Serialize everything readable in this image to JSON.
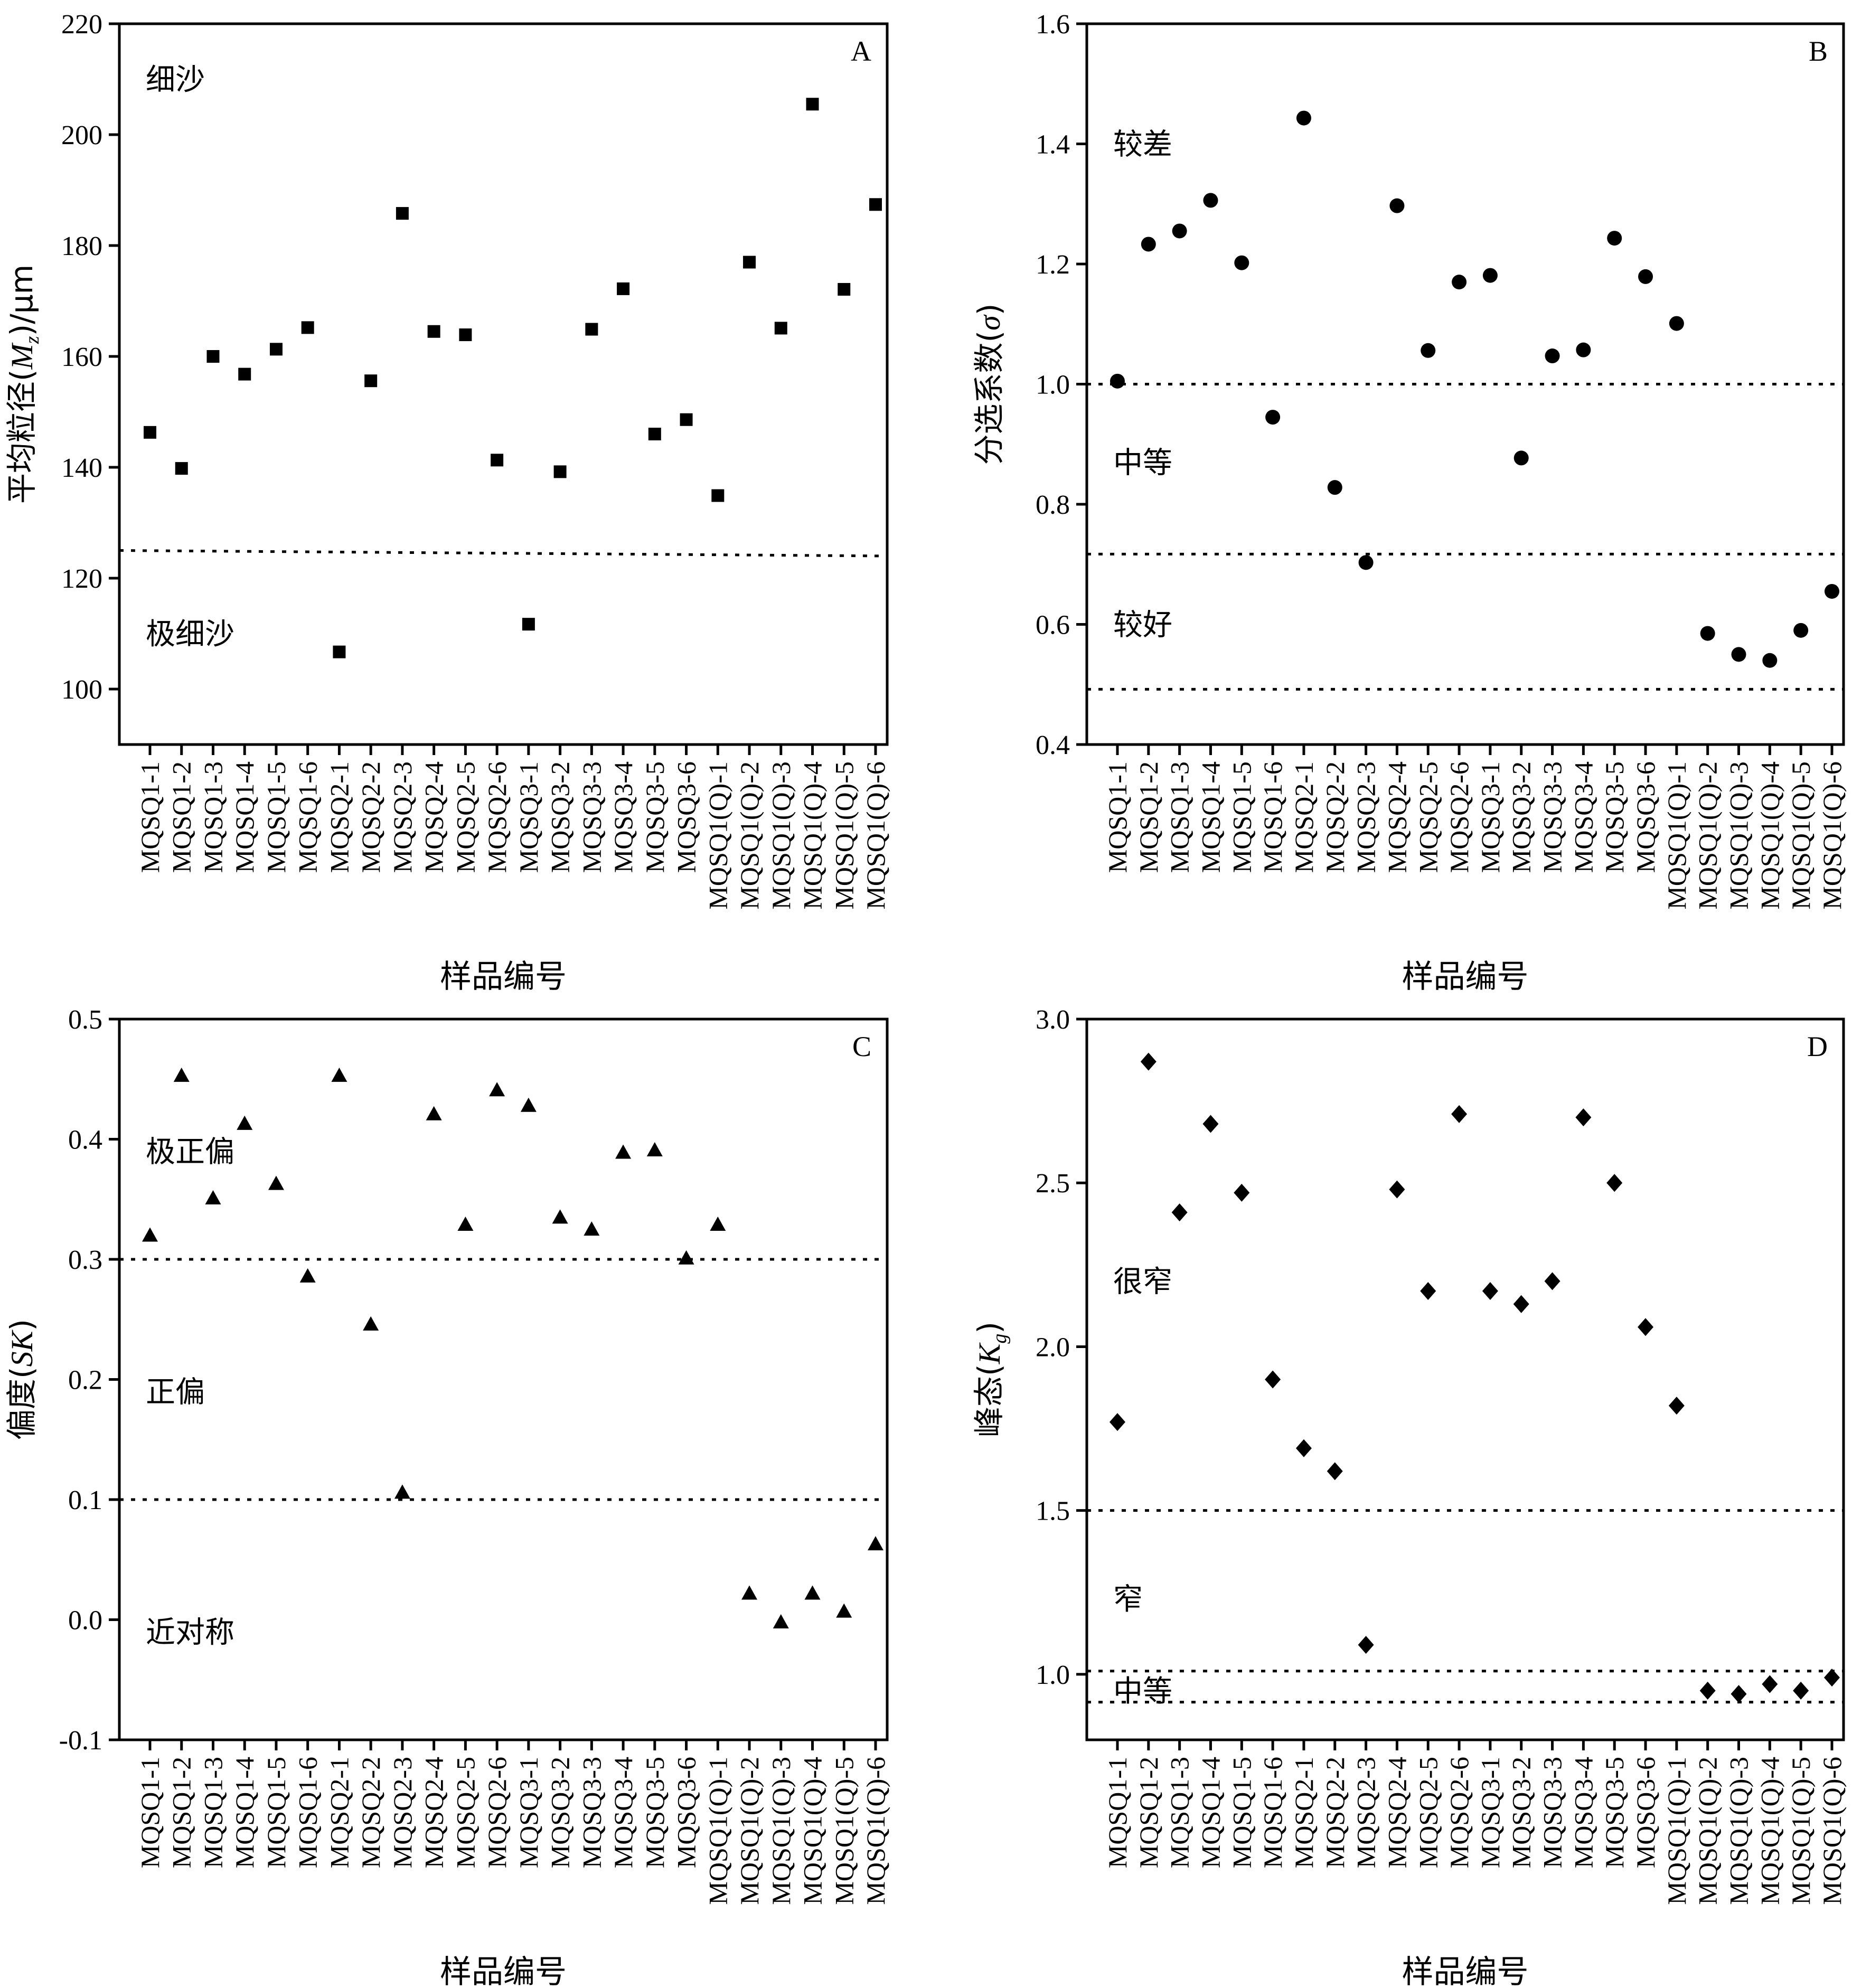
{
  "chart_data": [
    {
      "panel": "A",
      "type": "scatter",
      "marker": "square",
      "ylabel_prefix": "平均粒径(",
      "ylabel_symbol": "M",
      "ylabel_sub": "z",
      "ylabel_suffix": ")/μm",
      "xlabel": "样品编号",
      "ylim": [
        90,
        220
      ],
      "yticks": [
        100,
        120,
        140,
        160,
        180,
        200,
        220
      ],
      "categories": [
        "MQSQ1-1",
        "MQSQ1-2",
        "MQSQ1-3",
        "MQSQ1-4",
        "MQSQ1-5",
        "MQSQ1-6",
        "MQSQ2-1",
        "MQSQ2-2",
        "MQSQ2-3",
        "MQSQ2-4",
        "MQSQ2-5",
        "MQSQ2-6",
        "MQSQ3-1",
        "MQSQ3-2",
        "MQSQ3-3",
        "MQSQ3-4",
        "MQSQ3-5",
        "MQSQ3-6",
        "MQSQ1(Q)-1",
        "MQSQ1(Q)-2",
        "MQSQ1(Q)-3",
        "MQSQ1(Q)-4",
        "MQSQ1(Q)-5",
        "MQSQ1(Q)-6"
      ],
      "values": [
        146.3,
        139.8,
        160.0,
        156.8,
        161.3,
        165.2,
        106.7,
        155.6,
        185.8,
        164.5,
        163.9,
        141.3,
        111.7,
        139.2,
        164.9,
        172.2,
        146.0,
        148.6,
        134.9,
        177.0,
        165.1,
        205.5,
        172.1,
        187.4
      ],
      "thresholds": [
        [
          125,
          124
        ]
      ],
      "zones": [
        {
          "label": "细沙",
          "y": 210
        },
        {
          "label": "极细沙",
          "y": 110
        }
      ]
    },
    {
      "panel": "B",
      "type": "scatter",
      "marker": "circle",
      "ylabel_prefix": "分选系数(",
      "ylabel_symbol": "σ",
      "ylabel_sub": "",
      "ylabel_suffix": ")",
      "xlabel": "样品编号",
      "ylim": [
        0.4,
        1.6
      ],
      "yticks": [
        0.4,
        0.6,
        0.8,
        1.0,
        1.2,
        1.4,
        1.6
      ],
      "categories": [
        "MQSQ1-1",
        "MQSQ1-2",
        "MQSQ1-3",
        "MQSQ1-4",
        "MQSQ1-5",
        "MQSQ1-6",
        "MQSQ2-1",
        "MQSQ2-2",
        "MQSQ2-3",
        "MQSQ2-4",
        "MQSQ2-5",
        "MQSQ2-6",
        "MQSQ3-1",
        "MQSQ3-2",
        "MQSQ3-3",
        "MQSQ3-4",
        "MQSQ3-5",
        "MQSQ3-6",
        "MQSQ1(Q)-1",
        "MQSQ1(Q)-2",
        "MQSQ1(Q)-3",
        "MQSQ1(Q)-4",
        "MQSQ1(Q)-5",
        "MQSQ1(Q)-6"
      ],
      "values": [
        1.005,
        1.233,
        1.255,
        1.306,
        1.202,
        0.945,
        1.443,
        0.828,
        0.703,
        1.297,
        1.056,
        1.17,
        1.181,
        0.877,
        1.047,
        1.057,
        1.243,
        1.179,
        1.101,
        0.585,
        0.55,
        0.54,
        0.59,
        0.655
      ],
      "thresholds": [
        [
          1.0,
          1.0
        ],
        [
          0.717,
          0.717
        ],
        [
          0.492,
          0.492
        ]
      ],
      "zones": [
        {
          "label": "较差",
          "y": 1.4
        },
        {
          "label": "中等",
          "y": 0.87
        },
        {
          "label": "较好",
          "y": 0.6
        }
      ]
    },
    {
      "panel": "C",
      "type": "scatter",
      "marker": "triangle",
      "ylabel_prefix": "偏度(",
      "ylabel_symbol": "SK",
      "ylabel_sub": "",
      "ylabel_suffix": ")",
      "xlabel": "样品编号",
      "ylim": [
        -0.1,
        0.5
      ],
      "yticks": [
        -0.1,
        0.0,
        0.1,
        0.2,
        0.3,
        0.4,
        0.5
      ],
      "categories": [
        "MQSQ1-1",
        "MQSQ1-2",
        "MQSQ1-3",
        "MQSQ1-4",
        "MQSQ1-5",
        "MQSQ1-6",
        "MQSQ2-1",
        "MQSQ2-2",
        "MQSQ2-3",
        "MQSQ2-4",
        "MQSQ2-5",
        "MQSQ2-6",
        "MQSQ3-1",
        "MQSQ3-2",
        "MQSQ3-3",
        "MQSQ3-4",
        "MQSQ3-5",
        "MQSQ3-6",
        "MQSQ1(Q)-1",
        "MQSQ1(Q)-2",
        "MQSQ1(Q)-3",
        "MQSQ1(Q)-4",
        "MQSQ1(Q)-5",
        "MQSQ1(Q)-6"
      ],
      "values": [
        0.32,
        0.453,
        0.351,
        0.413,
        0.363,
        0.286,
        0.453,
        0.246,
        0.106,
        0.421,
        0.329,
        0.441,
        0.428,
        0.335,
        0.325,
        0.389,
        0.391,
        0.301,
        0.329,
        0.022,
        -0.002,
        0.022,
        0.007,
        0.063
      ],
      "thresholds": [
        [
          0.3,
          0.3
        ],
        [
          0.1,
          0.1
        ]
      ],
      "zones": [
        {
          "label": "极正偏",
          "y": 0.39
        },
        {
          "label": "正偏",
          "y": 0.19
        },
        {
          "label": "近对称",
          "y": -0.01
        }
      ]
    },
    {
      "panel": "D",
      "type": "scatter",
      "marker": "diamond",
      "ylabel_prefix": "峰态(",
      "ylabel_symbol": "K",
      "ylabel_sub": "g",
      "ylabel_suffix": ")",
      "xlabel": "样品编号",
      "ylim": [
        0.8,
        3.0
      ],
      "yticks": [
        1.0,
        1.5,
        2.0,
        2.5,
        3.0
      ],
      "categories": [
        "MQSQ1-1",
        "MQSQ1-2",
        "MQSQ1-3",
        "MQSQ1-4",
        "MQSQ1-5",
        "MQSQ1-6",
        "MQSQ2-1",
        "MQSQ2-2",
        "MQSQ2-3",
        "MQSQ2-4",
        "MQSQ2-5",
        "MQSQ2-6",
        "MQSQ3-1",
        "MQSQ3-2",
        "MQSQ3-3",
        "MQSQ3-4",
        "MQSQ3-5",
        "MQSQ3-6",
        "MQSQ1(Q)-1",
        "MQSQ1(Q)-2",
        "MQSQ1(Q)-3",
        "MQSQ1(Q)-4",
        "MQSQ1(Q)-5",
        "MQSQ1(Q)-6"
      ],
      "values": [
        1.77,
        2.87,
        2.41,
        2.68,
        2.47,
        1.9,
        1.69,
        1.62,
        1.09,
        2.48,
        2.17,
        2.71,
        2.17,
        2.13,
        2.2,
        2.7,
        2.5,
        2.06,
        1.82,
        0.95,
        0.94,
        0.97,
        0.95,
        0.99
      ],
      "thresholds": [
        [
          1.5,
          1.5
        ],
        [
          1.01,
          1.01
        ],
        [
          0.915,
          0.915
        ]
      ],
      "zones": [
        {
          "label": "很窄",
          "y": 2.2
        },
        {
          "label": "窄",
          "y": 1.23
        },
        {
          "label": "中等",
          "y": 0.95
        }
      ]
    }
  ]
}
